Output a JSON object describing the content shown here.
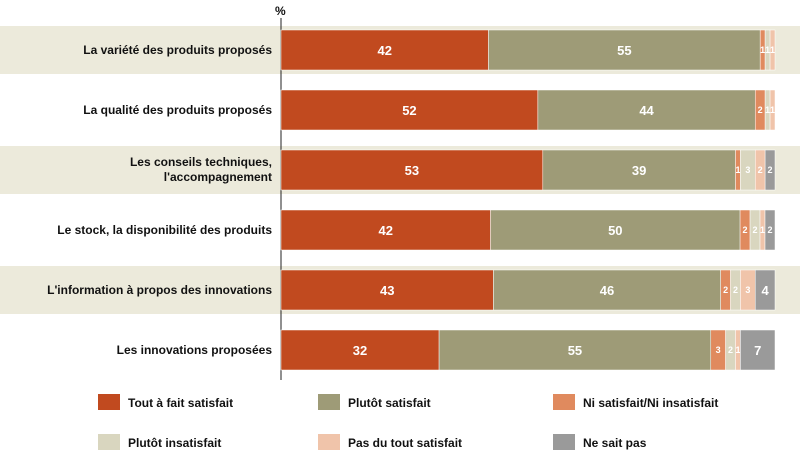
{
  "chart_data": {
    "type": "bar",
    "orientation": "horizontal-stacked-100",
    "unit_label": "%",
    "xlim": [
      0,
      100
    ],
    "categories": [
      [
        "La variété des produits proposés"
      ],
      [
        "La qualité des produits proposés"
      ],
      [
        "Les conseils techniques,",
        "l'accompagnement"
      ],
      [
        "Le stock, la disponibilité des produits"
      ],
      [
        "L'information à propos des innovations"
      ],
      [
        "Les innovations proposées"
      ]
    ],
    "series": [
      {
        "name": "Tout à fait satisfait",
        "color": "#c14a1f",
        "values": [
          42,
          52,
          53,
          42,
          43,
          32
        ]
      },
      {
        "name": "Plutôt satisfait",
        "color": "#9e9b77",
        "values": [
          55,
          44,
          39,
          50,
          46,
          55
        ]
      },
      {
        "name": "Ni satisfait/Ni insatisfait",
        "color": "#e08a5e",
        "values": [
          1,
          2,
          1,
          2,
          2,
          3
        ]
      },
      {
        "name": "Plutôt insatisfait",
        "color": "#d9d6bf",
        "values": [
          1,
          1,
          3,
          2,
          2,
          2
        ]
      },
      {
        "name": "Pas du tout satisfait",
        "color": "#f0c4aa",
        "values": [
          1,
          1,
          2,
          1,
          3,
          1
        ]
      },
      {
        "name": "Ne sait pas",
        "color": "#9a9a9a",
        "values": [
          0,
          0,
          2,
          2,
          4,
          7
        ]
      }
    ],
    "row_shading": [
      "#eceadb",
      "#ffffff"
    ]
  }
}
